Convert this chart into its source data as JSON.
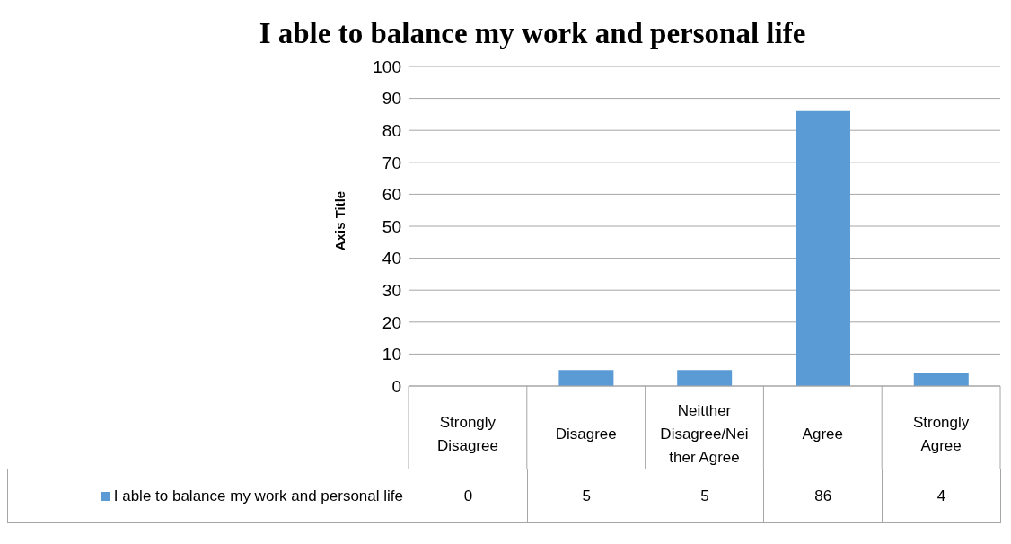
{
  "chart_data": {
    "type": "bar",
    "title": "I able to balance my work and personal life",
    "ylabel": "Axis Title",
    "categories": [
      "Strongly Disagree",
      "Disagree",
      "Neitther Disagree/Neither Agree",
      "Agree",
      "Strongly Agree"
    ],
    "series": [
      {
        "name": "I able to balance my work and personal life",
        "color": "#5b9bd5",
        "values": [
          0,
          5,
          5,
          86,
          4
        ]
      }
    ],
    "ylim": [
      0,
      100
    ],
    "yticks": [
      0,
      10,
      20,
      30,
      40,
      50,
      60,
      70,
      80,
      90,
      100
    ],
    "grid": "y",
    "legend": "bottom left",
    "data_labels": true
  }
}
